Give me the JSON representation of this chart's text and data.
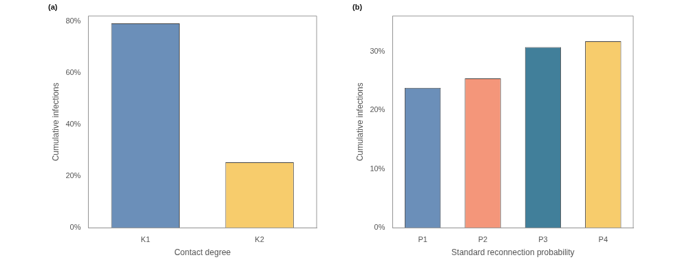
{
  "chart_data": [
    {
      "type": "bar",
      "title": "(a)",
      "xlabel": "Contact degree",
      "ylabel": "Cumulative infections",
      "categories": [
        "K1",
        "K2"
      ],
      "values": [
        79.1,
        25.4
      ],
      "colors": [
        "#6b8fb9",
        "#f7cc6c"
      ],
      "ylim": [
        0,
        82
      ],
      "yticks": [
        {
          "value": 0,
          "label": "0%"
        },
        {
          "value": 20,
          "label": "20%"
        },
        {
          "value": 40,
          "label": "40%"
        },
        {
          "value": 60,
          "label": "60%"
        },
        {
          "value": 80,
          "label": "80%"
        }
      ],
      "grid": false
    },
    {
      "type": "bar",
      "title": "(b)",
      "xlabel": "Standard reconnection probability",
      "ylabel": "Cumulative infections",
      "categories": [
        "P1",
        "P2",
        "P3",
        "P4"
      ],
      "values": [
        23.8,
        25.4,
        30.7,
        31.7
      ],
      "colors": [
        "#6b8fb9",
        "#f4967a",
        "#417f9a",
        "#f7cc6c"
      ],
      "ylim": [
        0,
        36
      ],
      "yticks": [
        {
          "value": 0,
          "label": "0%"
        },
        {
          "value": 10,
          "label": "10%"
        },
        {
          "value": 20,
          "label": "20%"
        },
        {
          "value": 30,
          "label": "30%"
        }
      ],
      "grid": false
    }
  ]
}
